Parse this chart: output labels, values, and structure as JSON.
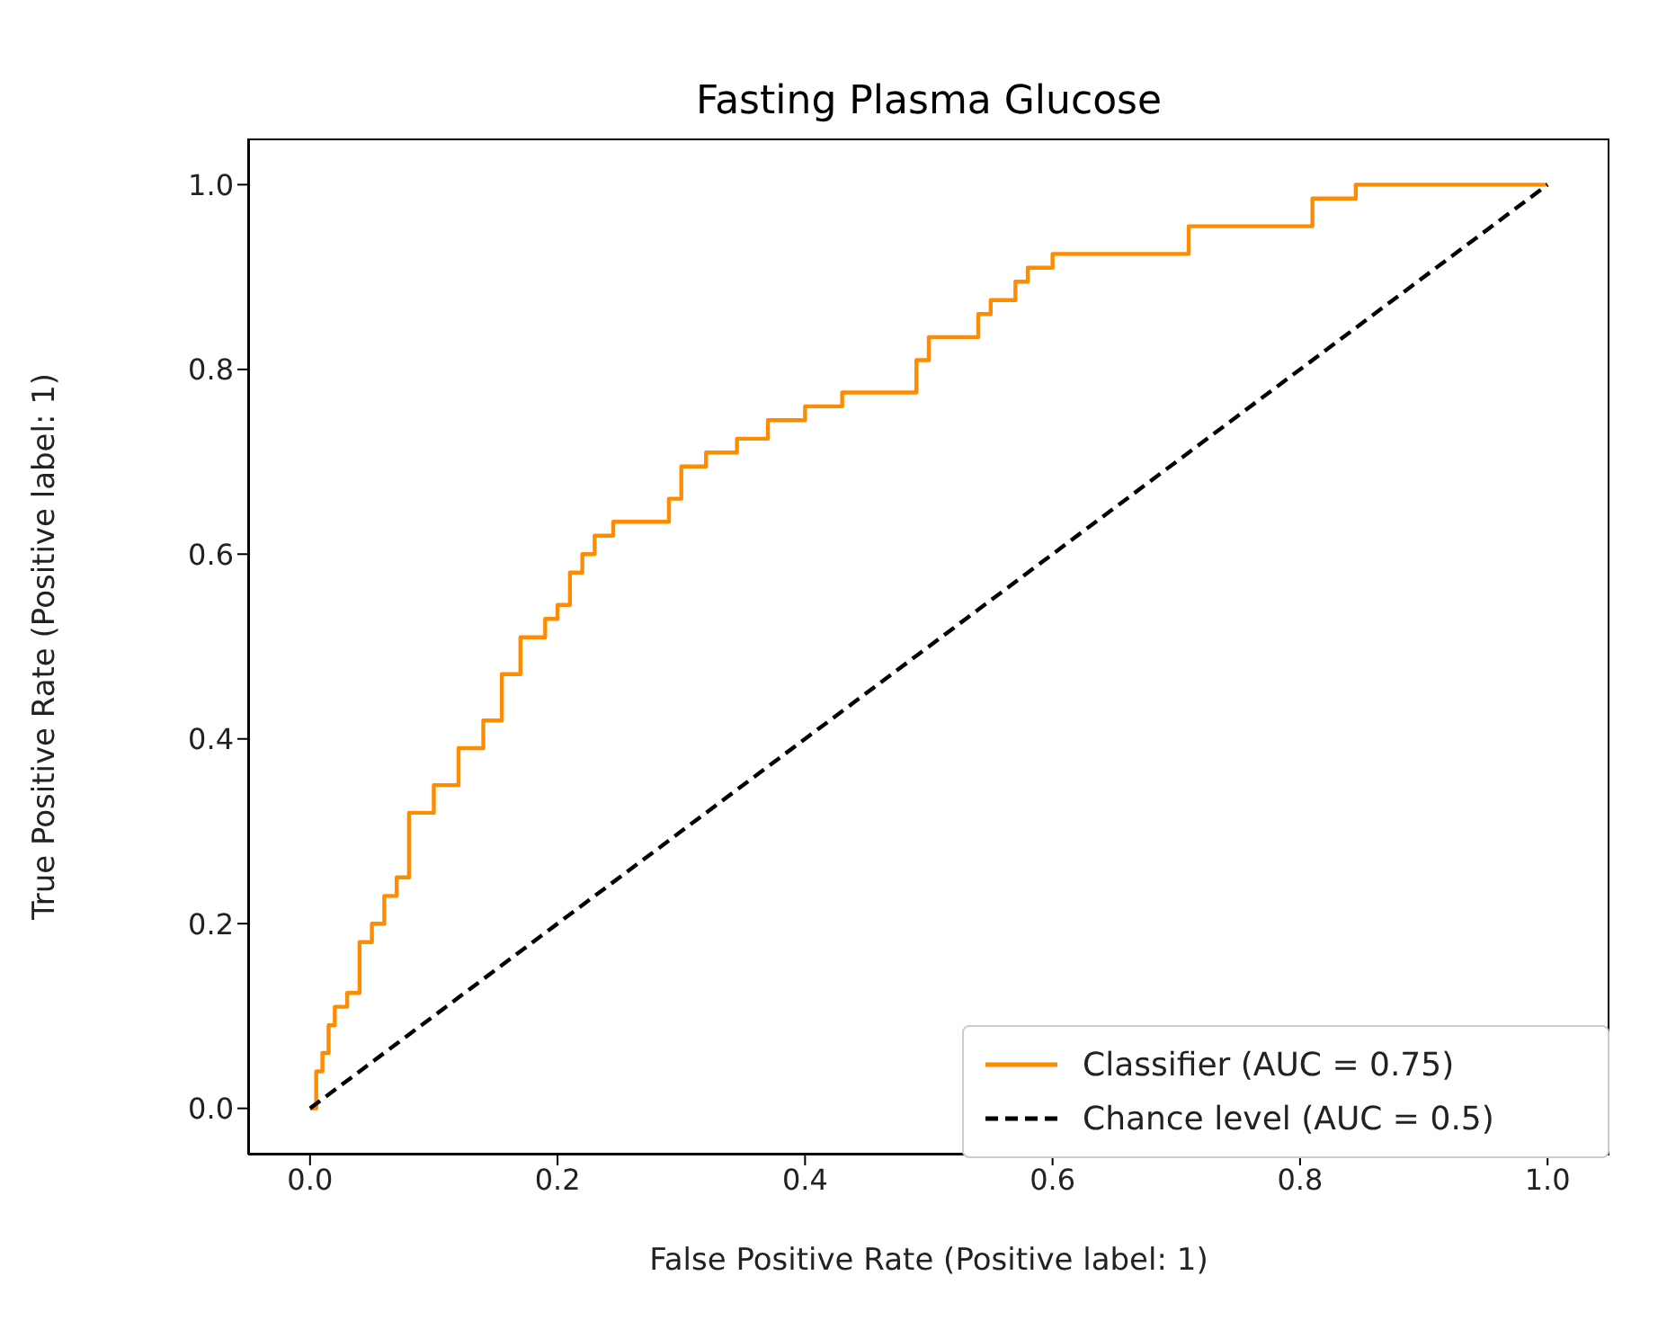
{
  "chart_data": {
    "type": "line",
    "title": "Fasting Plasma Glucose",
    "xlabel": "False Positive Rate (Positive label: 1)",
    "ylabel": "True Positive Rate (Positive label: 1)",
    "series": [
      {
        "name": "Classifier (AUC = 0.75)",
        "type": "step",
        "color": "#ff8c00",
        "line_style": "solid",
        "x": [
          0,
          0.005,
          0.01,
          0.015,
          0.02,
          0.03,
          0.04,
          0.05,
          0.06,
          0.07,
          0.08,
          0.1,
          0.12,
          0.14,
          0.155,
          0.17,
          0.19,
          0.2,
          0.21,
          0.22,
          0.23,
          0.245,
          0.29,
          0.3,
          0.32,
          0.345,
          0.37,
          0.4,
          0.43,
          0.49,
          0.5,
          0.54,
          0.55,
          0.57,
          0.58,
          0.6,
          0.71,
          0.81,
          0.845,
          1.0
        ],
        "values": [
          0,
          0.04,
          0.06,
          0.09,
          0.11,
          0.125,
          0.18,
          0.2,
          0.23,
          0.25,
          0.32,
          0.35,
          0.39,
          0.42,
          0.47,
          0.51,
          0.53,
          0.545,
          0.58,
          0.6,
          0.62,
          0.635,
          0.66,
          0.695,
          0.71,
          0.725,
          0.745,
          0.76,
          0.775,
          0.81,
          0.835,
          0.86,
          0.875,
          0.895,
          0.91,
          0.925,
          0.955,
          0.985,
          1.0,
          1.0
        ]
      },
      {
        "name": "Chance level (AUC = 0.5)",
        "type": "line",
        "color": "#000000",
        "line_style": "dashed",
        "x": [
          0,
          1
        ],
        "values": [
          0,
          1
        ]
      }
    ],
    "xlim": [
      -0.05,
      1.05
    ],
    "ylim": [
      -0.05,
      1.05
    ],
    "xticks": [
      {
        "value": 0,
        "label": "0.0"
      },
      {
        "value": 0.2,
        "label": "0.2"
      },
      {
        "value": 0.4,
        "label": "0.4"
      },
      {
        "value": 0.6,
        "label": "0.6"
      },
      {
        "value": 0.8,
        "label": "0.8"
      },
      {
        "value": 1,
        "label": "1.0"
      }
    ],
    "yticks": [
      {
        "value": 0,
        "label": "0.0"
      },
      {
        "value": 0.2,
        "label": "0.2"
      },
      {
        "value": 0.4,
        "label": "0.4"
      },
      {
        "value": 0.6,
        "label": "0.6"
      },
      {
        "value": 0.8,
        "label": "0.8"
      },
      {
        "value": 1,
        "label": "1.0"
      }
    ],
    "legend": "bottom right",
    "grid": false,
    "marker": "none"
  }
}
